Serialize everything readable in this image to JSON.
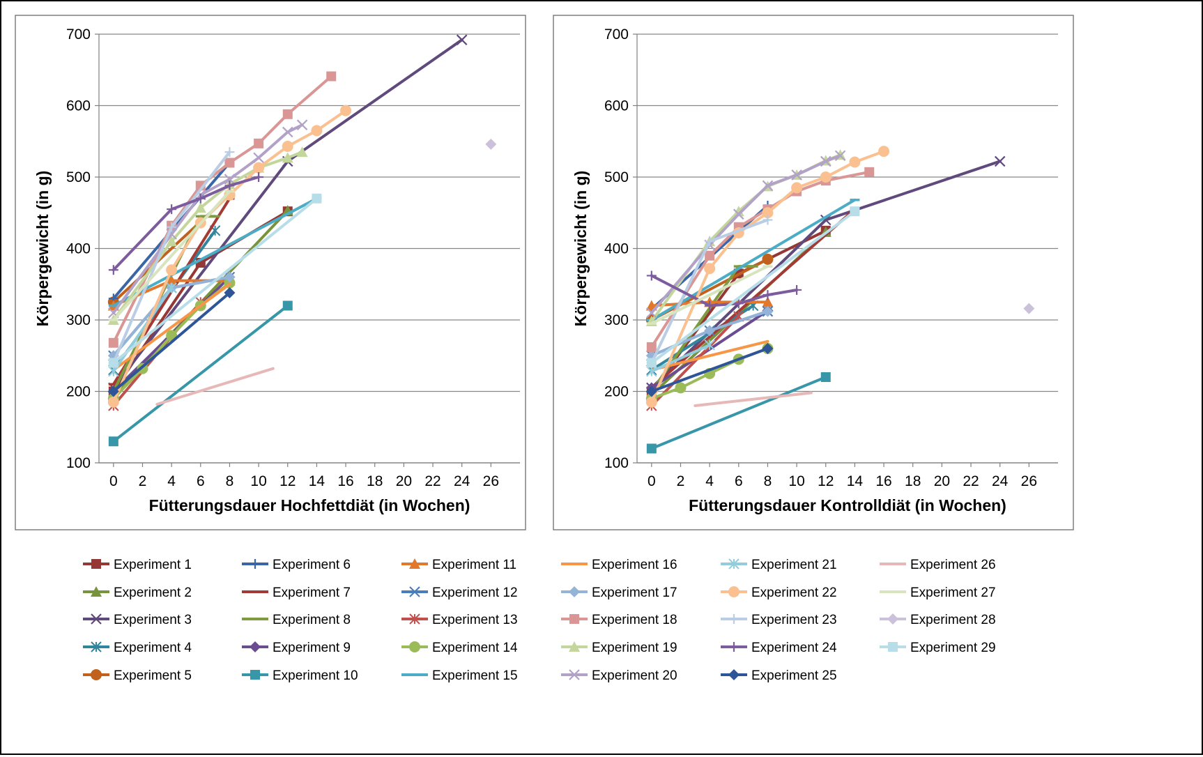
{
  "chart_data": [
    {
      "type": "line",
      "xlabel": "Fütterungsdauer Hochfettdiät (in Wochen)",
      "ylabel": "Körpergewicht (in g)",
      "xlim": [
        -1,
        28
      ],
      "ylim": [
        100,
        700
      ],
      "xticks": [
        0,
        2,
        4,
        6,
        8,
        10,
        12,
        14,
        16,
        18,
        20,
        22,
        24,
        26
      ],
      "yticks": [
        100,
        200,
        300,
        400,
        500,
        600,
        700
      ],
      "grid": "horizontal",
      "series": [
        {
          "name": "Experiment 1",
          "x": [
            0,
            6,
            12
          ],
          "y": [
            200,
            380,
            452
          ]
        },
        {
          "name": "Experiment 2",
          "x": [
            0,
            12
          ],
          "y": [
            195,
            453
          ]
        },
        {
          "name": "Experiment 3",
          "x": [
            0,
            12,
            24
          ],
          "y": [
            205,
            522,
            692
          ]
        },
        {
          "name": "Experiment 4",
          "x": [
            0,
            7
          ],
          "y": [
            230,
            425
          ]
        },
        {
          "name": "Experiment 5",
          "x": [
            0,
            8
          ],
          "y": [
            325,
            475
          ]
        },
        {
          "name": "Experiment 6",
          "x": [
            0,
            8
          ],
          "y": [
            330,
            520
          ]
        },
        {
          "name": "Experiment 7",
          "x": [
            0,
            8
          ],
          "y": [
            210,
            470
          ]
        },
        {
          "name": "Experiment 8",
          "x": [
            0,
            6,
            7
          ],
          "y": [
            200,
            445,
            445
          ]
        },
        {
          "name": "Experiment 9",
          "x": [
            0,
            8
          ],
          "y": [
            200,
            360
          ]
        },
        {
          "name": "Experiment 10",
          "x": [
            0,
            12
          ],
          "y": [
            130,
            320
          ]
        },
        {
          "name": "Experiment 11",
          "x": [
            0,
            4,
            8
          ],
          "y": [
            320,
            355,
            355
          ]
        },
        {
          "name": "Experiment 12",
          "x": [
            0,
            4,
            8
          ],
          "y": [
            250,
            345,
            360
          ]
        },
        {
          "name": "Experiment 13",
          "x": [
            0,
            6
          ],
          "y": [
            180,
            325
          ]
        },
        {
          "name": "Experiment 14",
          "x": [
            0,
            2,
            4,
            6,
            8
          ],
          "y": [
            190,
            232,
            278,
            320,
            352
          ]
        },
        {
          "name": "Experiment 15",
          "x": [
            0,
            14
          ],
          "y": [
            320,
            470
          ]
        },
        {
          "name": "Experiment 16",
          "x": [
            0,
            8
          ],
          "y": [
            230,
            350
          ]
        },
        {
          "name": "Experiment 17",
          "x": [
            0,
            4,
            8
          ],
          "y": [
            250,
            345,
            360
          ]
        },
        {
          "name": "Experiment 18",
          "x": [
            0,
            4,
            6,
            8,
            10,
            12,
            15
          ],
          "y": [
            268,
            432,
            488,
            520,
            547,
            588,
            641
          ]
        },
        {
          "name": "Experiment 19",
          "x": [
            0,
            4,
            6,
            8,
            10,
            12,
            13
          ],
          "y": [
            300,
            410,
            457,
            490,
            513,
            527,
            535
          ]
        },
        {
          "name": "Experiment 20",
          "x": [
            0,
            4,
            6,
            8,
            10,
            12,
            13
          ],
          "y": [
            310,
            420,
            475,
            497,
            527,
            563,
            573
          ]
        },
        {
          "name": "Experiment 21",
          "x": [
            0,
            4
          ],
          "y": [
            228,
            345
          ]
        },
        {
          "name": "Experiment 22",
          "x": [
            0,
            4,
            6,
            8,
            10,
            12,
            14,
            16
          ],
          "y": [
            185,
            370,
            436,
            475,
            513,
            543,
            565,
            593
          ]
        },
        {
          "name": "Experiment 23",
          "x": [
            0,
            4,
            8
          ],
          "y": [
            240,
            430,
            535
          ]
        },
        {
          "name": "Experiment 24",
          "x": [
            0,
            4,
            6,
            8,
            10
          ],
          "y": [
            370,
            455,
            470,
            488,
            500
          ]
        },
        {
          "name": "Experiment 25",
          "x": [
            0,
            8
          ],
          "y": [
            200,
            338
          ]
        },
        {
          "name": "Experiment 26",
          "x": [
            3,
            11
          ],
          "y": [
            182,
            232
          ]
        },
        {
          "name": "Experiment 27",
          "x": [
            0,
            8
          ],
          "y": [
            300,
            480
          ]
        },
        {
          "name": "Experiment 28",
          "x": [
            26
          ],
          "y": [
            546
          ]
        },
        {
          "name": "Experiment 29",
          "x": [
            0,
            14
          ],
          "y": [
            240,
            470
          ]
        }
      ]
    },
    {
      "type": "line",
      "xlabel": "Fütterungsdauer Kontrolldiät (in Wochen)",
      "ylabel": "Körpergewicht (in g)",
      "xlim": [
        -1,
        28
      ],
      "ylim": [
        100,
        700
      ],
      "xticks": [
        0,
        2,
        4,
        6,
        8,
        10,
        12,
        14,
        16,
        18,
        20,
        22,
        24,
        26
      ],
      "yticks": [
        100,
        200,
        300,
        400,
        500,
        600,
        700
      ],
      "grid": "horizontal",
      "series": [
        {
          "name": "Experiment 1",
          "x": [
            0,
            6,
            12
          ],
          "y": [
            200,
            365,
            425
          ]
        },
        {
          "name": "Experiment 2",
          "x": [
            0,
            12
          ],
          "y": [
            195,
            423
          ]
        },
        {
          "name": "Experiment 3",
          "x": [
            0,
            12,
            24
          ],
          "y": [
            205,
            440,
            522
          ]
        },
        {
          "name": "Experiment 4",
          "x": [
            0,
            7
          ],
          "y": [
            230,
            320
          ]
        },
        {
          "name": "Experiment 5",
          "x": [
            0,
            8
          ],
          "y": [
            300,
            385
          ]
        },
        {
          "name": "Experiment 6",
          "x": [
            0,
            8
          ],
          "y": [
            315,
            460
          ]
        },
        {
          "name": "Experiment 7",
          "x": [
            0,
            14
          ],
          "y": [
            205,
            455
          ]
        },
        {
          "name": "Experiment 8",
          "x": [
            0,
            6,
            7
          ],
          "y": [
            200,
            375,
            375
          ]
        },
        {
          "name": "Experiment 9",
          "x": [
            0,
            8
          ],
          "y": [
            205,
            313
          ]
        },
        {
          "name": "Experiment 10",
          "x": [
            0,
            12
          ],
          "y": [
            120,
            220
          ]
        },
        {
          "name": "Experiment 11",
          "x": [
            0,
            4,
            8
          ],
          "y": [
            320,
            325,
            325
          ]
        },
        {
          "name": "Experiment 12",
          "x": [
            0,
            4,
            8
          ],
          "y": [
            250,
            285,
            312
          ]
        },
        {
          "name": "Experiment 13",
          "x": [
            0,
            6
          ],
          "y": [
            180,
            305
          ]
        },
        {
          "name": "Experiment 14",
          "x": [
            0,
            2,
            4,
            6,
            8
          ],
          "y": [
            190,
            205,
            225,
            245,
            260
          ]
        },
        {
          "name": "Experiment 15",
          "x": [
            0,
            14
          ],
          "y": [
            300,
            468
          ]
        },
        {
          "name": "Experiment 16",
          "x": [
            0,
            8
          ],
          "y": [
            230,
            270
          ]
        },
        {
          "name": "Experiment 17",
          "x": [
            0,
            4,
            8
          ],
          "y": [
            250,
            285,
            312
          ]
        },
        {
          "name": "Experiment 18",
          "x": [
            0,
            4,
            6,
            8,
            10,
            12,
            15
          ],
          "y": [
            262,
            390,
            430,
            455,
            480,
            495,
            507
          ]
        },
        {
          "name": "Experiment 19",
          "x": [
            0,
            4,
            6,
            8,
            10,
            12,
            13
          ],
          "y": [
            298,
            410,
            452,
            487,
            503,
            523,
            531
          ]
        },
        {
          "name": "Experiment 20",
          "x": [
            0,
            4,
            6,
            8,
            10,
            12,
            13
          ],
          "y": [
            310,
            405,
            448,
            488,
            503,
            522,
            530
          ]
        },
        {
          "name": "Experiment 21",
          "x": [
            0,
            4
          ],
          "y": [
            228,
            265
          ]
        },
        {
          "name": "Experiment 22",
          "x": [
            0,
            4,
            6,
            8,
            10,
            12,
            14,
            16
          ],
          "y": [
            185,
            372,
            422,
            450,
            485,
            500,
            521,
            536
          ]
        },
        {
          "name": "Experiment 23",
          "x": [
            0,
            4,
            8
          ],
          "y": [
            240,
            410,
            440
          ]
        },
        {
          "name": "Experiment 24",
          "x": [
            0,
            4,
            6,
            8,
            10
          ],
          "y": [
            362,
            320,
            323,
            335,
            342
          ]
        },
        {
          "name": "Experiment 25",
          "x": [
            0,
            8
          ],
          "y": [
            200,
            260
          ]
        },
        {
          "name": "Experiment 26",
          "x": [
            3,
            11
          ],
          "y": [
            180,
            198
          ]
        },
        {
          "name": "Experiment 27",
          "x": [
            0,
            8
          ],
          "y": [
            295,
            375
          ]
        },
        {
          "name": "Experiment 28",
          "x": [
            26
          ],
          "y": [
            316
          ]
        },
        {
          "name": "Experiment 29",
          "x": [
            0,
            14
          ],
          "y": [
            240,
            452
          ]
        }
      ]
    }
  ],
  "legend": {
    "placement": "bottom",
    "columns": 6,
    "entries": [
      {
        "name": "Experiment 1",
        "color": "#953735",
        "marker": "square"
      },
      {
        "name": "Experiment 2",
        "color": "#77933C",
        "marker": "triangle"
      },
      {
        "name": "Experiment 3",
        "color": "#604A7B",
        "marker": "x"
      },
      {
        "name": "Experiment 4",
        "color": "#31859C",
        "marker": "star"
      },
      {
        "name": "Experiment 5",
        "color": "#C0621E",
        "marker": "circle"
      },
      {
        "name": "Experiment 6",
        "color": "#3A66A7",
        "marker": "plus"
      },
      {
        "name": "Experiment 7",
        "color": "#A33A36",
        "marker": "dash"
      },
      {
        "name": "Experiment 8",
        "color": "#7E9C3F",
        "marker": "dash"
      },
      {
        "name": "Experiment 9",
        "color": "#6A4C90",
        "marker": "diamond"
      },
      {
        "name": "Experiment 10",
        "color": "#3796A8",
        "marker": "square"
      },
      {
        "name": "Experiment 11",
        "color": "#E1782B",
        "marker": "triangle"
      },
      {
        "name": "Experiment 12",
        "color": "#4A7EBB",
        "marker": "x"
      },
      {
        "name": "Experiment 13",
        "color": "#C0504D",
        "marker": "star"
      },
      {
        "name": "Experiment 14",
        "color": "#9BBB59",
        "marker": "circle"
      },
      {
        "name": "Experiment 15",
        "color": "#4BACC6",
        "marker": "dash"
      },
      {
        "name": "Experiment 16",
        "color": "#F79646",
        "marker": "none"
      },
      {
        "name": "Experiment 17",
        "color": "#95B3D7",
        "marker": "diamond"
      },
      {
        "name": "Experiment 18",
        "color": "#D99694",
        "marker": "square"
      },
      {
        "name": "Experiment 19",
        "color": "#C3D69B",
        "marker": "triangle"
      },
      {
        "name": "Experiment 20",
        "color": "#B3A2C7",
        "marker": "x"
      },
      {
        "name": "Experiment 21",
        "color": "#93CDDD",
        "marker": "star"
      },
      {
        "name": "Experiment 22",
        "color": "#FAC090",
        "marker": "circle"
      },
      {
        "name": "Experiment 23",
        "color": "#B9CDE5",
        "marker": "plus"
      },
      {
        "name": "Experiment 24",
        "color": "#7D5C9E",
        "marker": "plus"
      },
      {
        "name": "Experiment 25",
        "color": "#2E5597",
        "marker": "diamond"
      },
      {
        "name": "Experiment 26",
        "color": "#E6B9B8",
        "marker": "none"
      },
      {
        "name": "Experiment 27",
        "color": "#D7E4BD",
        "marker": "dash"
      },
      {
        "name": "Experiment 28",
        "color": "#CCC1DA",
        "marker": "diamond"
      },
      {
        "name": "Experiment 29",
        "color": "#B7DEE8",
        "marker": "square"
      }
    ]
  }
}
